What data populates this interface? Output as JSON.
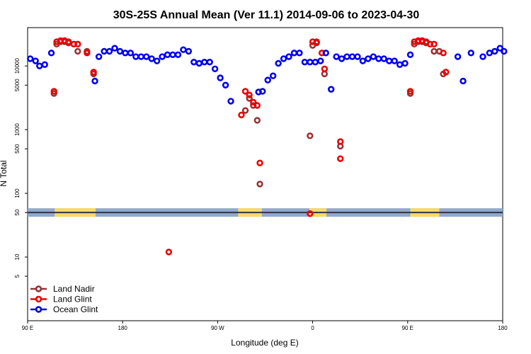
{
  "chart_data": {
    "type": "scatter",
    "title": "30S-25S Annual Mean (Ver 11.1)   2014-09-06 to 2023-04-30",
    "xlabel": "Longitude (deg E)",
    "ylabel": "N Total",
    "xlim": [
      90,
      450
    ],
    "ylim": [
      1,
      40000
    ],
    "yscale": "log",
    "reference_line": 50,
    "x_ticks": [
      {
        "value": 90,
        "label": "90 E"
      },
      {
        "value": 162,
        "label": "180"
      },
      {
        "value": 234,
        "label": "90 W"
      },
      {
        "value": 306,
        "label": "0"
      },
      {
        "value": 378,
        "label": "90 E"
      },
      {
        "value": 450,
        "label": "180"
      }
    ],
    "y_ticks": [
      {
        "value": 5,
        "label": "5"
      },
      {
        "value": 10,
        "label": "10"
      },
      {
        "value": 50,
        "label": "50"
      },
      {
        "value": 100,
        "label": "100"
      },
      {
        "value": 500,
        "label": "500"
      },
      {
        "value": 1000,
        "label": "1000"
      },
      {
        "value": 5000,
        "label": "5000"
      },
      {
        "value": 10000,
        "label": "10000"
      }
    ],
    "land_bands": [
      {
        "x0": 110.5,
        "x1": 141.5
      },
      {
        "x0": 249.5,
        "x1": 267.5
      },
      {
        "x0": 303.5,
        "x1": 316.5
      },
      {
        "x0": 380,
        "x1": 402
      }
    ],
    "series": [
      {
        "name": "Land Nadir",
        "color": "#993333",
        "points": [
          [
            110,
            3700
          ],
          [
            112,
            22000
          ],
          [
            115,
            24000
          ],
          [
            118,
            24000
          ],
          [
            121,
            23000
          ],
          [
            128,
            17000
          ],
          [
            135,
            17000
          ],
          [
            140,
            7500
          ],
          [
            255,
            2000
          ],
          [
            258,
            3100
          ],
          [
            261,
            2400
          ],
          [
            264,
            1400
          ],
          [
            266,
            140
          ],
          [
            304,
            800
          ],
          [
            306,
            21000
          ],
          [
            309,
            23000
          ],
          [
            315,
            7500
          ],
          [
            327,
            550
          ],
          [
            380,
            3700
          ],
          [
            383,
            22000
          ],
          [
            386,
            24000
          ],
          [
            389,
            24000
          ],
          [
            392,
            23000
          ],
          [
            398,
            17000
          ],
          [
            402,
            17000
          ],
          [
            405,
            7500
          ]
        ]
      },
      {
        "name": "Land Glint",
        "color": "#ee0000",
        "points": [
          [
            110,
            4000
          ],
          [
            112,
            24000
          ],
          [
            115,
            25000
          ],
          [
            118,
            25000
          ],
          [
            121,
            24000
          ],
          [
            125,
            22000
          ],
          [
            128,
            22000
          ],
          [
            135,
            16000
          ],
          [
            140,
            8000
          ],
          [
            197,
            12
          ],
          [
            252,
            1700
          ],
          [
            255,
            4000
          ],
          [
            258,
            3500
          ],
          [
            261,
            2700
          ],
          [
            264,
            2400
          ],
          [
            266,
            300
          ],
          [
            304,
            48
          ],
          [
            306,
            24000
          ],
          [
            309,
            24000
          ],
          [
            313,
            16000
          ],
          [
            315,
            9000
          ],
          [
            327,
            350
          ],
          [
            327,
            650
          ],
          [
            380,
            4000
          ],
          [
            383,
            24000
          ],
          [
            386,
            25000
          ],
          [
            389,
            25000
          ],
          [
            392,
            24000
          ],
          [
            395,
            22000
          ],
          [
            398,
            22000
          ],
          [
            405,
            16000
          ],
          [
            407,
            8000
          ]
        ]
      },
      {
        "name": "Ocean Glint",
        "color": "#0000ee",
        "points": [
          [
            92,
            13000
          ],
          [
            96,
            12000
          ],
          [
            99,
            10000
          ],
          [
            103,
            10500
          ],
          [
            108,
            16000
          ],
          [
            141,
            5800
          ],
          [
            144,
            14000
          ],
          [
            148,
            17000
          ],
          [
            152,
            17000
          ],
          [
            156,
            19000
          ],
          [
            160,
            17000
          ],
          [
            164,
            16000
          ],
          [
            168,
            16000
          ],
          [
            172,
            14000
          ],
          [
            176,
            14000
          ],
          [
            180,
            14000
          ],
          [
            184,
            13000
          ],
          [
            188,
            12000
          ],
          [
            192,
            14000
          ],
          [
            196,
            15000
          ],
          [
            200,
            15000
          ],
          [
            204,
            15000
          ],
          [
            208,
            18000
          ],
          [
            212,
            17000
          ],
          [
            216,
            11500
          ],
          [
            220,
            11000
          ],
          [
            224,
            11500
          ],
          [
            228,
            11500
          ],
          [
            232,
            9000
          ],
          [
            236,
            6500
          ],
          [
            240,
            5000
          ],
          [
            244,
            2800
          ],
          [
            265,
            3900
          ],
          [
            268,
            4000
          ],
          [
            272,
            6000
          ],
          [
            276,
            7000
          ],
          [
            280,
            11000
          ],
          [
            284,
            13000
          ],
          [
            288,
            14000
          ],
          [
            292,
            16000
          ],
          [
            296,
            16000
          ],
          [
            300,
            11500
          ],
          [
            304,
            11500
          ],
          [
            308,
            11500
          ],
          [
            312,
            12000
          ],
          [
            316,
            16000
          ],
          [
            320,
            4300
          ],
          [
            324,
            14000
          ],
          [
            328,
            13000
          ],
          [
            332,
            14000
          ],
          [
            336,
            14000
          ],
          [
            340,
            14000
          ],
          [
            344,
            12000
          ],
          [
            348,
            13000
          ],
          [
            352,
            14000
          ],
          [
            356,
            13000
          ],
          [
            360,
            13000
          ],
          [
            364,
            12000
          ],
          [
            368,
            12000
          ],
          [
            372,
            10500
          ],
          [
            376,
            11000
          ],
          [
            380,
            15000
          ],
          [
            435,
            14000
          ],
          [
            440,
            16000
          ],
          [
            444,
            17000
          ],
          [
            448,
            19000
          ],
          [
            451,
            17000
          ],
          [
            416,
            14000
          ],
          [
            420,
            5800
          ],
          [
            426,
            16000
          ]
        ]
      }
    ],
    "legend": {
      "placement": "bottom-left",
      "entries": [
        {
          "label": "Land Nadir",
          "color": "#993333"
        },
        {
          "label": "Land Glint",
          "color": "#ee0000"
        },
        {
          "label": "Ocean Glint",
          "color": "#0000ee"
        }
      ]
    },
    "colors": {
      "reference_band": "#8eaacc",
      "reference_line": "#333344",
      "land_band": "#ffd966"
    }
  }
}
